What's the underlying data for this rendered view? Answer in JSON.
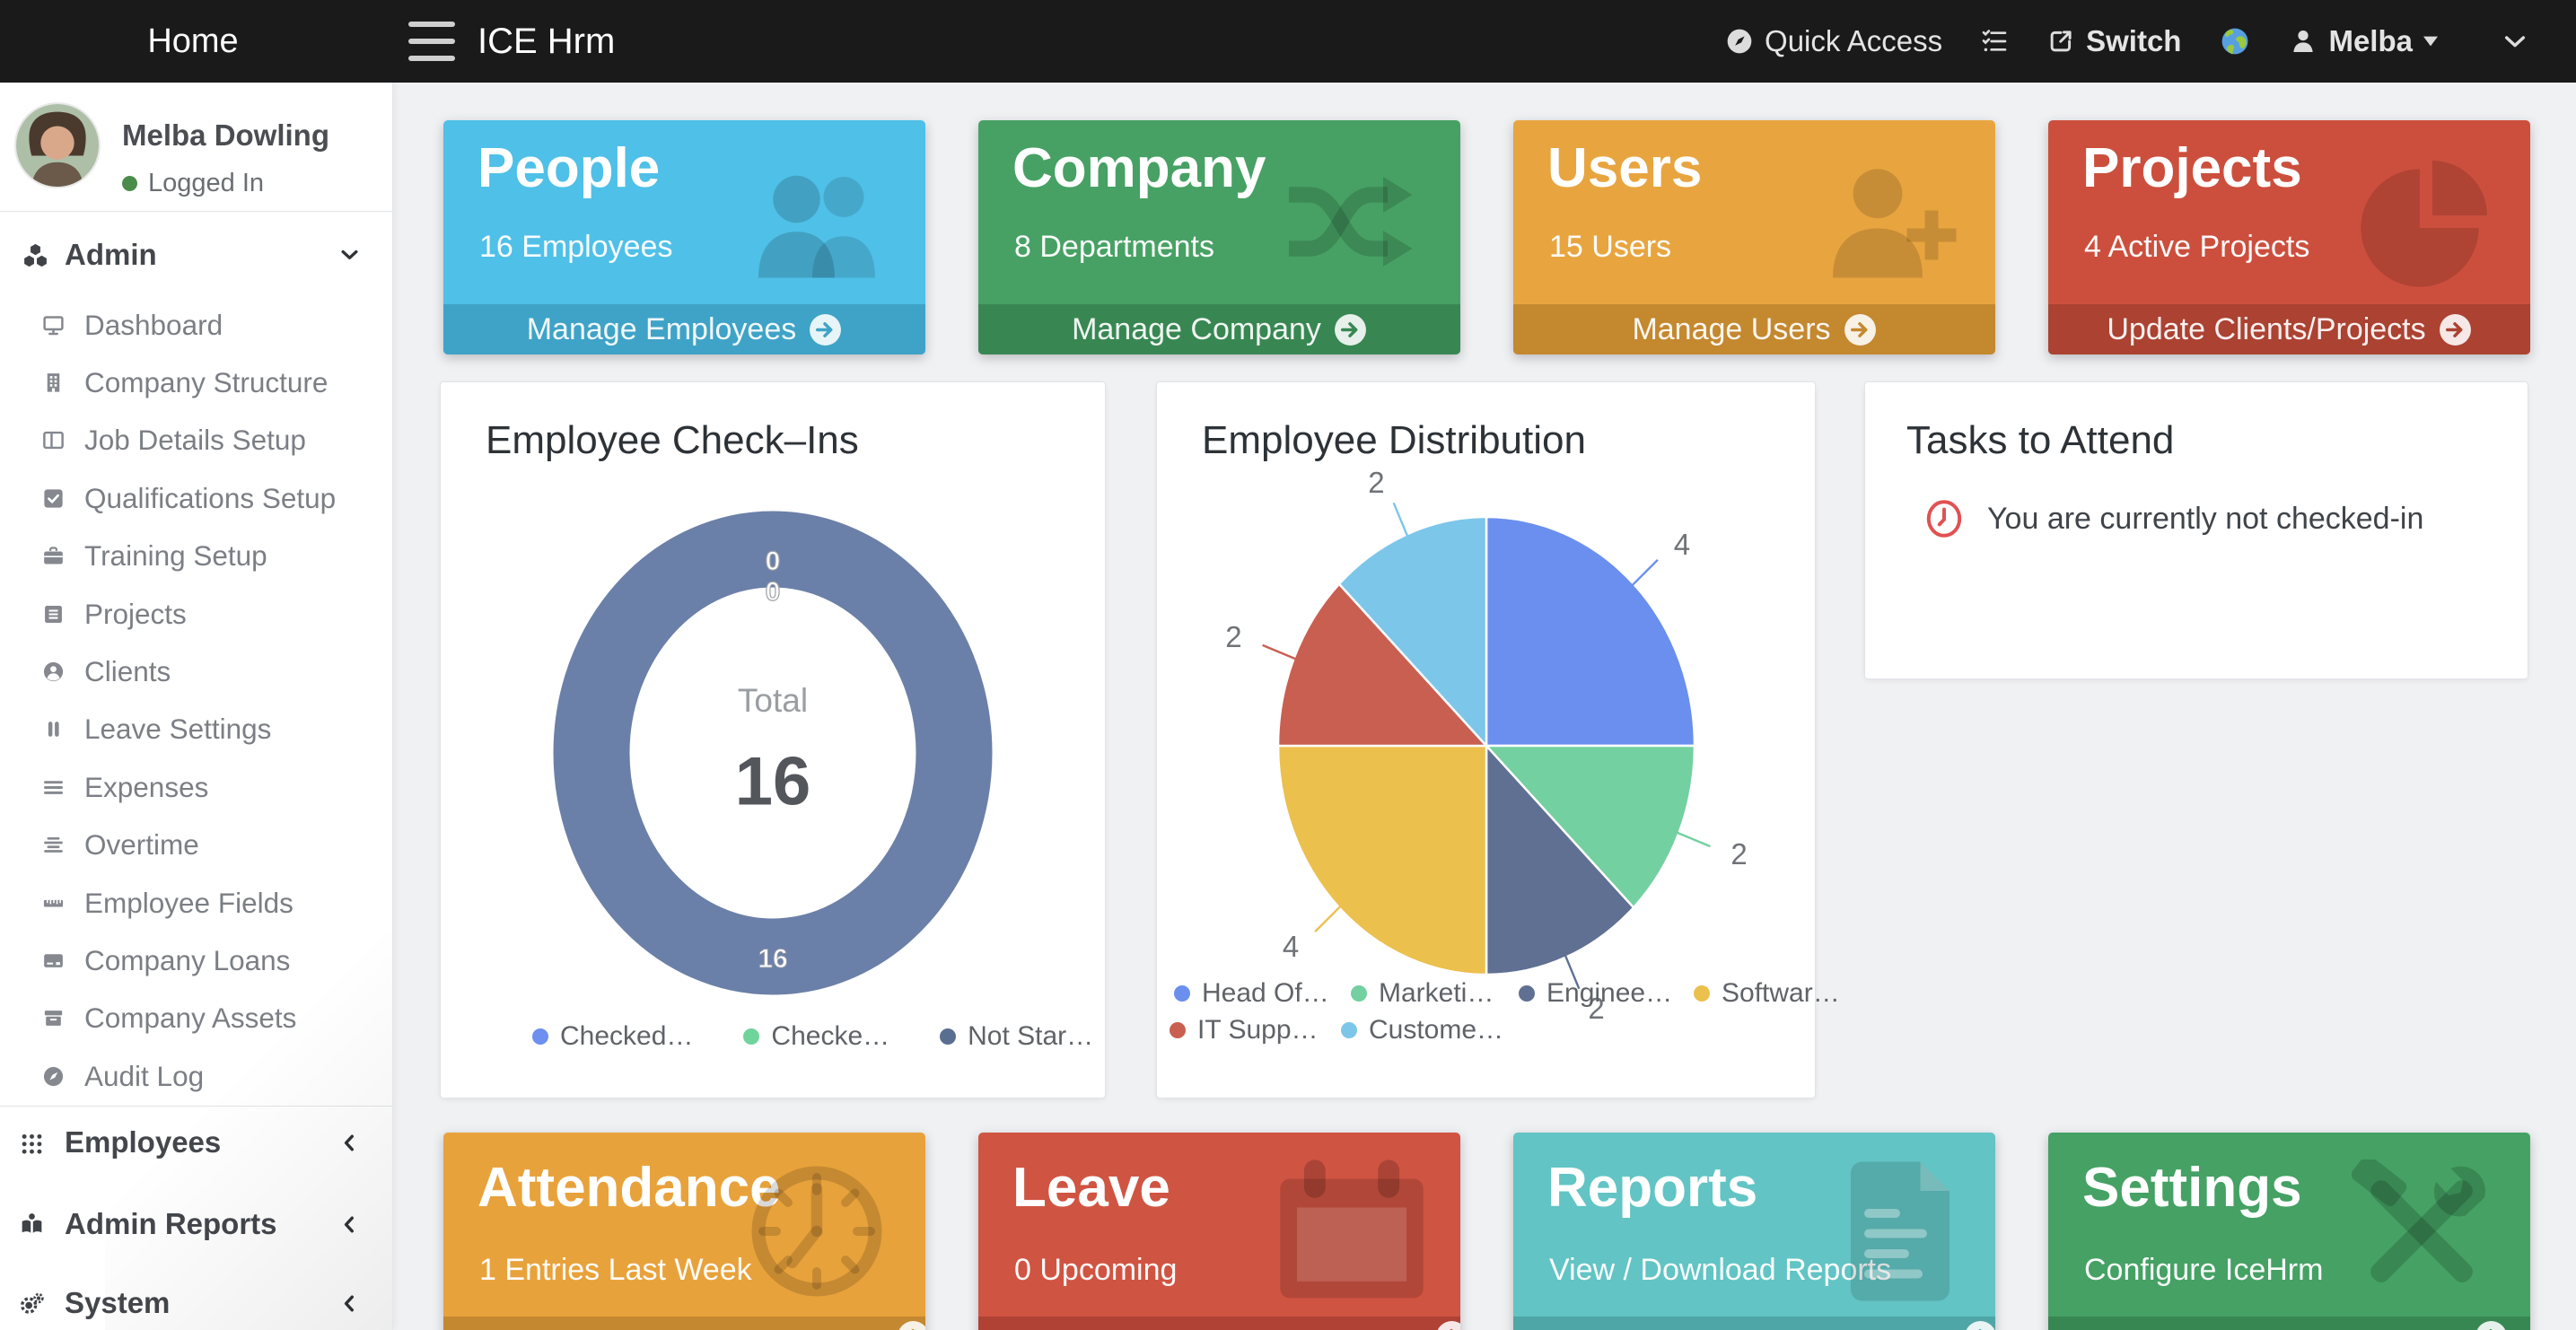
{
  "navbar": {
    "home": "Home",
    "brand": "ICE Hrm",
    "quick_access": "Quick Access",
    "switch_label": "Switch",
    "user_name": "Melba"
  },
  "sidebar": {
    "profile": {
      "name": "Melba Dowling",
      "status": "Logged In"
    },
    "admin": {
      "label": "Admin",
      "items": [
        {
          "label": "Dashboard"
        },
        {
          "label": "Company Structure"
        },
        {
          "label": "Job Details Setup"
        },
        {
          "label": "Qualifications Setup"
        },
        {
          "label": "Training Setup"
        },
        {
          "label": "Projects"
        },
        {
          "label": "Clients"
        },
        {
          "label": "Leave Settings"
        },
        {
          "label": "Expenses"
        },
        {
          "label": "Overtime"
        },
        {
          "label": "Employee Fields"
        },
        {
          "label": "Company Loans"
        },
        {
          "label": "Company Assets"
        },
        {
          "label": "Audit Log"
        }
      ]
    },
    "collapsed_sections": [
      {
        "label": "Employees"
      },
      {
        "label": "Admin Reports"
      },
      {
        "label": "System"
      }
    ]
  },
  "cards_top": [
    {
      "title": "People",
      "subtitle": "16 Employees",
      "footer": "Manage Employees",
      "color": "#4fc0e8",
      "footer_color": "#3fa3c7"
    },
    {
      "title": "Company",
      "subtitle": "8 Departments",
      "footer": "Manage Company",
      "color": "#47a164",
      "footer_color": "#388753"
    },
    {
      "title": "Users",
      "subtitle": "15 Users",
      "footer": "Manage Users",
      "color": "#e8a53f",
      "footer_color": "#c4882f"
    },
    {
      "title": "Projects",
      "subtitle": "4 Active Projects",
      "footer": "Update Clients/Projects",
      "color": "#cc4f3d",
      "footer_color": "#ab4232"
    }
  ],
  "cards_bottom": [
    {
      "title": "Attendance",
      "subtitle": "1 Entries Last Week",
      "color": "#e8a23b",
      "footer_color": "#c48831"
    },
    {
      "title": "Leave",
      "subtitle": "0 Upcoming",
      "color": "#d05442",
      "footer_color": "#af4234"
    },
    {
      "title": "Reports",
      "subtitle": "View / Download Reports",
      "color": "#62c4c4",
      "footer_color": "#4fa6a6"
    },
    {
      "title": "Settings",
      "subtitle": "Configure IceHrm",
      "color": "#45a164",
      "footer_color": "#378753"
    }
  ],
  "panels": {
    "checkins_title": "Employee Check–Ins",
    "distribution_title": "Employee Distribution",
    "tasks_title": "Tasks to Attend",
    "tasks_message": "You are currently not checked-in"
  },
  "colors": {
    "navbar_bg": "#1a1a1a",
    "page_bg": "#f0f1f3",
    "logged_in_dot": "#4a8c4a",
    "task_alert": "#e05252"
  },
  "chart_data": [
    {
      "type": "pie",
      "variant": "donut",
      "title": "Employee Check–Ins",
      "center_label": "Total",
      "center_total": "16",
      "labels": [
        "Checked…",
        "Checke…",
        "Not Star…"
      ],
      "values": [
        0,
        0,
        16
      ],
      "value_labels": [
        "0",
        "0",
        "16"
      ],
      "colors": [
        "#6d8ff0",
        "#6fd49b",
        "#5a6e91"
      ],
      "ring_color": "#6b80a8",
      "legend_position": "bottom"
    },
    {
      "type": "pie",
      "title": "Employee Distribution",
      "labels": [
        "Head Of…",
        "Marketi…",
        "Enginee…",
        "Softwar…",
        "IT Supp…",
        "Custome…"
      ],
      "values": [
        4,
        2,
        2,
        4,
        2,
        2
      ],
      "colors": [
        "#6a8fee",
        "#73d0a0",
        "#5f7093",
        "#ecc04d",
        "#c95f51",
        "#7cc6e9"
      ],
      "legend_position": "bottom",
      "start_angle": "top",
      "direction": "clockwise"
    }
  ]
}
